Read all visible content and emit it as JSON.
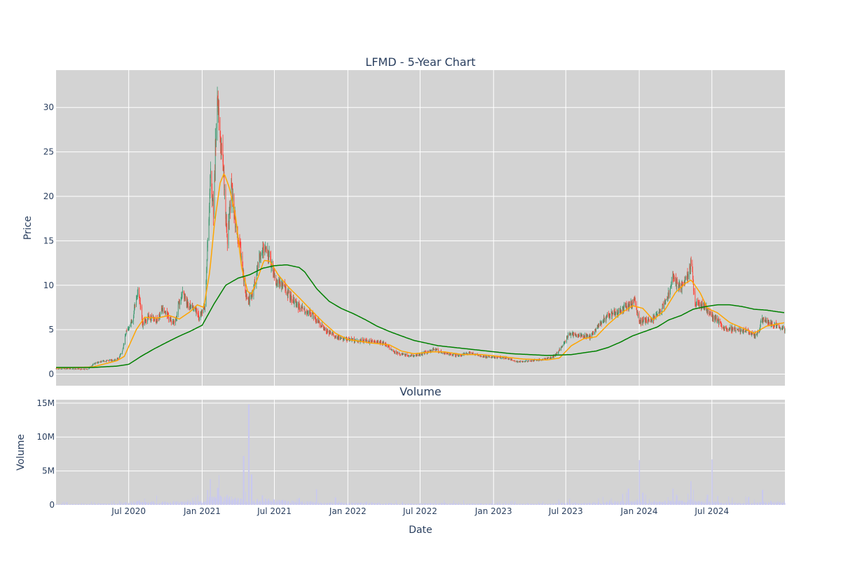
{
  "chart_data": [
    {
      "type": "candlestick",
      "title": "LFMD - 5-Year Chart",
      "ylabel": "Price",
      "ylim": [
        -1.3,
        34.2
      ],
      "yticks": [
        0,
        5,
        10,
        15,
        20,
        25,
        30
      ],
      "xlim": [
        "2020-01-01",
        "2024-12-31"
      ],
      "grid": true,
      "legend": "none",
      "colors": {
        "background": "#d3d3d3",
        "up": "#3d9970",
        "down": "#ff4136",
        "ma_short": "#ffa500",
        "ma_long": "#008000",
        "grid": "#ffffff"
      },
      "price_anchors": [
        [
          "2020-01-01",
          0.6
        ],
        [
          "2020-02-15",
          0.6
        ],
        [
          "2020-03-20",
          0.55
        ],
        [
          "2020-04-05",
          1.2
        ],
        [
          "2020-05-01",
          1.5
        ],
        [
          "2020-06-01",
          1.6
        ],
        [
          "2020-06-15",
          2.5
        ],
        [
          "2020-06-25",
          4.8
        ],
        [
          "2020-07-10",
          6.0
        ],
        [
          "2020-07-25",
          9.5
        ],
        [
          "2020-08-05",
          5.5
        ],
        [
          "2020-08-20",
          6.5
        ],
        [
          "2020-09-10",
          6.0
        ],
        [
          "2020-09-25",
          7.5
        ],
        [
          "2020-10-10",
          6.2
        ],
        [
          "2020-10-25",
          5.8
        ],
        [
          "2020-11-10",
          9.2
        ],
        [
          "2020-11-25",
          8.0
        ],
        [
          "2020-12-10",
          7.5
        ],
        [
          "2020-12-25",
          6.5
        ],
        [
          "2021-01-08",
          7.5
        ],
        [
          "2021-01-15",
          15.0
        ],
        [
          "2021-01-22",
          22.5
        ],
        [
          "2021-01-29",
          18.5
        ],
        [
          "2021-02-05",
          28.0
        ],
        [
          "2021-02-09",
          31.5
        ],
        [
          "2021-02-15",
          27.0
        ],
        [
          "2021-02-22",
          23.5
        ],
        [
          "2021-03-05",
          15.0
        ],
        [
          "2021-03-15",
          21.0
        ],
        [
          "2021-03-25",
          17.0
        ],
        [
          "2021-04-05",
          14.5
        ],
        [
          "2021-04-15",
          10.5
        ],
        [
          "2021-04-25",
          8.0
        ],
        [
          "2021-05-10",
          9.5
        ],
        [
          "2021-05-25",
          13.5
        ],
        [
          "2021-06-05",
          14.2
        ],
        [
          "2021-06-20",
          13.0
        ],
        [
          "2021-07-05",
          10.5
        ],
        [
          "2021-07-20",
          10.0
        ],
        [
          "2021-08-05",
          9.0
        ],
        [
          "2021-09-01",
          7.5
        ],
        [
          "2021-10-01",
          6.8
        ],
        [
          "2021-11-01",
          5.2
        ],
        [
          "2021-12-01",
          4.2
        ],
        [
          "2022-01-01",
          3.9
        ],
        [
          "2022-02-15",
          3.7
        ],
        [
          "2022-04-01",
          3.5
        ],
        [
          "2022-05-01",
          2.4
        ],
        [
          "2022-06-01",
          2.1
        ],
        [
          "2022-07-01",
          2.2
        ],
        [
          "2022-08-05",
          2.8
        ],
        [
          "2022-09-05",
          2.3
        ],
        [
          "2022-10-05",
          2.1
        ],
        [
          "2022-11-05",
          2.4
        ],
        [
          "2022-12-05",
          2.0
        ],
        [
          "2023-01-05",
          1.9
        ],
        [
          "2023-02-05",
          1.8
        ],
        [
          "2023-03-01",
          1.4
        ],
        [
          "2023-04-01",
          1.5
        ],
        [
          "2023-05-01",
          1.6
        ],
        [
          "2023-06-01",
          2.0
        ],
        [
          "2023-06-20",
          3.0
        ],
        [
          "2023-07-10",
          4.6
        ],
        [
          "2023-08-01",
          4.3
        ],
        [
          "2023-09-01",
          4.2
        ],
        [
          "2023-10-01",
          6.0
        ],
        [
          "2023-10-20",
          6.8
        ],
        [
          "2023-11-10",
          7.0
        ],
        [
          "2023-12-01",
          7.6
        ],
        [
          "2023-12-20",
          8.2
        ],
        [
          "2024-01-01",
          6.0
        ],
        [
          "2024-02-01",
          6.0
        ],
        [
          "2024-02-20",
          7.0
        ],
        [
          "2024-03-10",
          8.2
        ],
        [
          "2024-03-25",
          10.8
        ],
        [
          "2024-04-15",
          9.6
        ],
        [
          "2024-05-01",
          11.0
        ],
        [
          "2024-05-10",
          12.5
        ],
        [
          "2024-05-20",
          8.0
        ],
        [
          "2024-06-10",
          7.8
        ],
        [
          "2024-07-01",
          6.6
        ],
        [
          "2024-08-01",
          5.3
        ],
        [
          "2024-09-01",
          5.0
        ],
        [
          "2024-10-01",
          4.8
        ],
        [
          "2024-10-20",
          4.3
        ],
        [
          "2024-11-05",
          6.2
        ],
        [
          "2024-12-01",
          5.6
        ],
        [
          "2024-12-31",
          5.0
        ]
      ],
      "ma_short_anchors": [
        [
          "2020-01-01",
          0.7
        ],
        [
          "2020-04-01",
          0.8
        ],
        [
          "2020-06-01",
          1.5
        ],
        [
          "2020-06-20",
          2.0
        ],
        [
          "2020-07-20",
          5.0
        ],
        [
          "2020-08-10",
          6.4
        ],
        [
          "2020-09-10",
          6.3
        ],
        [
          "2020-10-10",
          6.6
        ],
        [
          "2020-11-05",
          6.2
        ],
        [
          "2020-12-01",
          7.0
        ],
        [
          "2020-12-20",
          7.8
        ],
        [
          "2021-01-05",
          7.5
        ],
        [
          "2021-01-20",
          11.5
        ],
        [
          "2021-02-01",
          17.0
        ],
        [
          "2021-02-15",
          21.5
        ],
        [
          "2021-02-25",
          22.6
        ],
        [
          "2021-03-10",
          21.0
        ],
        [
          "2021-03-25",
          18.0
        ],
        [
          "2021-04-10",
          12.0
        ],
        [
          "2021-04-25",
          9.3
        ],
        [
          "2021-05-05",
          9.0
        ],
        [
          "2021-05-20",
          10.8
        ],
        [
          "2021-06-05",
          12.8
        ],
        [
          "2021-06-20",
          12.7
        ],
        [
          "2021-07-10",
          11.2
        ],
        [
          "2021-08-05",
          9.8
        ],
        [
          "2021-09-01",
          8.6
        ],
        [
          "2021-10-01",
          7.2
        ],
        [
          "2021-11-01",
          5.8
        ],
        [
          "2021-12-01",
          4.6
        ],
        [
          "2022-01-01",
          3.9
        ],
        [
          "2022-03-01",
          3.5
        ],
        [
          "2022-04-15",
          3.3
        ],
        [
          "2022-05-15",
          2.6
        ],
        [
          "2022-06-15",
          2.3
        ],
        [
          "2022-08-01",
          2.5
        ],
        [
          "2022-09-01",
          2.5
        ],
        [
          "2022-10-15",
          2.2
        ],
        [
          "2022-12-01",
          2.2
        ],
        [
          "2023-01-15",
          2.0
        ],
        [
          "2023-03-15",
          1.7
        ],
        [
          "2023-05-15",
          1.6
        ],
        [
          "2023-06-15",
          1.8
        ],
        [
          "2023-07-15",
          3.2
        ],
        [
          "2023-08-15",
          4.0
        ],
        [
          "2023-09-15",
          4.2
        ],
        [
          "2023-10-15",
          5.6
        ],
        [
          "2023-11-15",
          6.8
        ],
        [
          "2023-12-15",
          7.7
        ],
        [
          "2024-01-10",
          7.4
        ],
        [
          "2024-02-05",
          6.1
        ],
        [
          "2024-03-05",
          7.2
        ],
        [
          "2024-04-01",
          9.2
        ],
        [
          "2024-04-25",
          10.2
        ],
        [
          "2024-05-10",
          10.6
        ],
        [
          "2024-06-01",
          9.2
        ],
        [
          "2024-06-20",
          7.4
        ],
        [
          "2024-07-15",
          6.9
        ],
        [
          "2024-08-15",
          5.8
        ],
        [
          "2024-09-15",
          5.2
        ],
        [
          "2024-10-15",
          4.6
        ],
        [
          "2024-11-15",
          5.4
        ],
        [
          "2024-12-31",
          5.8
        ]
      ],
      "ma_long_anchors": [
        [
          "2020-01-01",
          0.75
        ],
        [
          "2020-04-01",
          0.75
        ],
        [
          "2020-06-01",
          0.9
        ],
        [
          "2020-07-01",
          1.1
        ],
        [
          "2020-08-01",
          2.0
        ],
        [
          "2020-09-01",
          2.8
        ],
        [
          "2020-10-01",
          3.5
        ],
        [
          "2020-11-01",
          4.2
        ],
        [
          "2020-12-01",
          4.8
        ],
        [
          "2021-01-01",
          5.5
        ],
        [
          "2021-02-01",
          8.0
        ],
        [
          "2021-03-01",
          10.0
        ],
        [
          "2021-04-01",
          10.8
        ],
        [
          "2021-05-01",
          11.2
        ],
        [
          "2021-06-01",
          11.9
        ],
        [
          "2021-07-01",
          12.2
        ],
        [
          "2021-08-01",
          12.3
        ],
        [
          "2021-09-01",
          12.0
        ],
        [
          "2021-09-15",
          11.5
        ],
        [
          "2021-10-15",
          9.6
        ],
        [
          "2021-11-15",
          8.2
        ],
        [
          "2021-12-15",
          7.4
        ],
        [
          "2022-01-15",
          6.8
        ],
        [
          "2022-02-15",
          6.1
        ],
        [
          "2022-03-15",
          5.4
        ],
        [
          "2022-04-15",
          4.8
        ],
        [
          "2022-05-15",
          4.3
        ],
        [
          "2022-06-15",
          3.8
        ],
        [
          "2022-08-15",
          3.2
        ],
        [
          "2022-10-15",
          2.9
        ],
        [
          "2022-12-15",
          2.6
        ],
        [
          "2023-02-15",
          2.3
        ],
        [
          "2023-05-15",
          2.1
        ],
        [
          "2023-07-15",
          2.2
        ],
        [
          "2023-09-15",
          2.6
        ],
        [
          "2023-10-15",
          3.0
        ],
        [
          "2023-11-15",
          3.6
        ],
        [
          "2023-12-15",
          4.3
        ],
        [
          "2024-01-15",
          4.8
        ],
        [
          "2024-02-15",
          5.3
        ],
        [
          "2024-03-15",
          6.1
        ],
        [
          "2024-04-15",
          6.6
        ],
        [
          "2024-05-15",
          7.3
        ],
        [
          "2024-06-15",
          7.6
        ],
        [
          "2024-07-15",
          7.8
        ],
        [
          "2024-08-15",
          7.8
        ],
        [
          "2024-09-15",
          7.6
        ],
        [
          "2024-10-15",
          7.3
        ],
        [
          "2024-11-15",
          7.2
        ],
        [
          "2024-12-31",
          6.9
        ]
      ]
    },
    {
      "type": "bar",
      "title": "Volume",
      "xlabel": "Date",
      "ylabel": "Volume",
      "ylim": [
        0,
        15500000
      ],
      "yticks": [
        0,
        5000000,
        10000000,
        15000000
      ],
      "ytick_labels": [
        "0",
        "5M",
        "10M",
        "15M"
      ],
      "xticks": [
        "2020-07-01",
        "2021-01-01",
        "2021-07-01",
        "2022-01-01",
        "2022-07-01",
        "2023-01-01",
        "2023-07-01",
        "2024-01-01",
        "2024-07-01"
      ],
      "xtick_labels": [
        "Jul 2020",
        "Jan 2021",
        "Jul 2021",
        "Jan 2022",
        "Jul 2022",
        "Jan 2023",
        "Jul 2023",
        "Jan 2024",
        "Jul 2024"
      ],
      "colors": {
        "bar": "#c8c8f0",
        "background": "#d3d3d3"
      },
      "volume_spikes": [
        [
          "2020-04-05",
          400000
        ],
        [
          "2020-07-25",
          600000
        ],
        [
          "2021-01-15",
          2200000
        ],
        [
          "2021-01-22",
          3800000
        ],
        [
          "2021-02-09",
          2500000
        ],
        [
          "2021-03-05",
          1500000
        ],
        [
          "2021-04-15",
          7200000
        ],
        [
          "2021-04-28",
          14800000
        ],
        [
          "2021-05-05",
          4500000
        ],
        [
          "2021-06-01",
          1400000
        ],
        [
          "2021-09-01",
          1000000
        ],
        [
          "2021-10-15",
          2300000
        ],
        [
          "2021-12-01",
          1100000
        ],
        [
          "2022-05-01",
          700000
        ],
        [
          "2023-07-10",
          900000
        ],
        [
          "2023-10-01",
          1200000
        ],
        [
          "2023-11-20",
          1600000
        ],
        [
          "2023-12-05",
          2400000
        ],
        [
          "2024-01-01",
          6600000
        ],
        [
          "2024-01-10",
          1800000
        ],
        [
          "2024-03-25",
          2400000
        ],
        [
          "2024-04-05",
          1400000
        ],
        [
          "2024-05-10",
          3500000
        ],
        [
          "2024-06-20",
          1500000
        ],
        [
          "2024-07-01",
          6700000
        ],
        [
          "2024-07-15",
          1300000
        ],
        [
          "2024-10-01",
          1100000
        ],
        [
          "2024-11-05",
          2200000
        ]
      ]
    }
  ]
}
